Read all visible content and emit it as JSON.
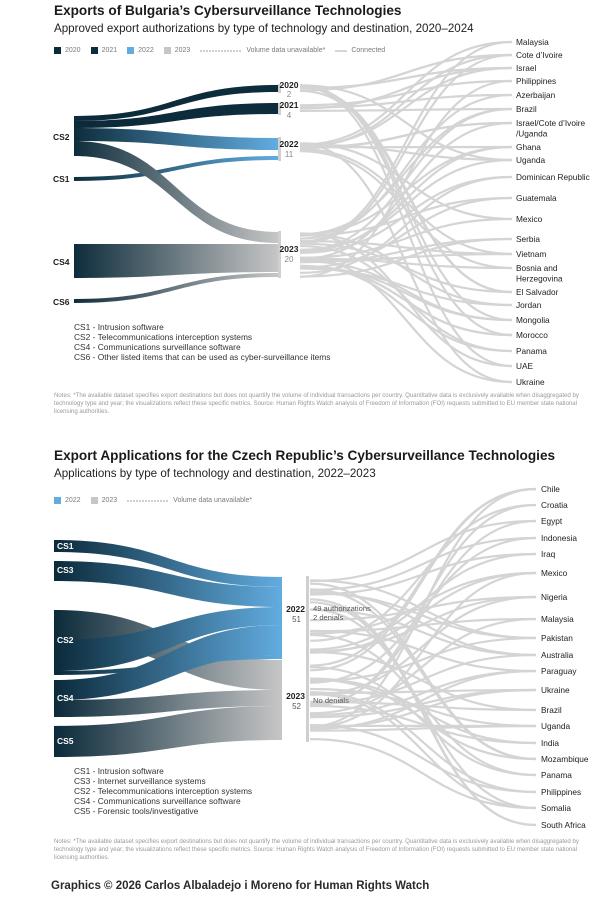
{
  "chart1": {
    "title": "Exports of Bulgaria’s Cybersurveillance Technologies",
    "subtitle": "Approved export authorizations by type of technology and destination, 2020–2024",
    "legend": [
      {
        "label": "2020",
        "color": "#0b2a3a"
      },
      {
        "label": "2021",
        "color": "#0e2d3c"
      },
      {
        "label": "2022",
        "color": "#62ace0"
      },
      {
        "label": "2023",
        "color": "#c6c6c6"
      }
    ],
    "legend_unavailable": "Volume data unavailable*",
    "legend_connected": "Connected",
    "sources": [
      "CS2",
      "CS1",
      "CS4",
      "CS6"
    ],
    "years": [
      {
        "year": "2020",
        "count": "2"
      },
      {
        "year": "2021",
        "count": "4"
      },
      {
        "year": "2022",
        "count": "11"
      },
      {
        "year": "2023",
        "count": "20"
      }
    ],
    "destinations": [
      "Malaysia",
      "Cote d’Ivoire",
      "Israel",
      "Philippines",
      "Azerbaijan",
      "Brazil",
      "Israel/Cote d’Ivoire /Uganda",
      "Ghana",
      "Uganda",
      "Dominican Republic",
      "Guatemala",
      "Mexico",
      "Serbia",
      "Vietnam",
      "Bosnia and Herzegovina",
      "El Salvador",
      "Jordan",
      "Mongolia",
      "Morocco",
      "Panama",
      "UAE",
      "Ukraine"
    ],
    "definitions": [
      "CS1 - Intrusion software",
      "CS2 - Telecommunications interception systems",
      "CS4 - Communications surveillance software",
      "CS6 - Other listed items that can be used as cyber-surveillance items"
    ],
    "notes": "Notes: *The available dataset specifies export destinations but does not quantify the volume of individual transactions per country. Quantitative data is exclusively available when disaggregated by technology type and year; the visualizations reflect these specific metrics. Source: Human Rights Watch analysis of Freedom of Information (FOI) requests submitted to EU member state national licensing authorities."
  },
  "chart2": {
    "title": "Export Applications for the Czech Republic’s Cybersurveillance Technologies",
    "subtitle": "Applications by type of technology and destination, 2022–2023",
    "legend": [
      {
        "label": "2022",
        "color": "#62ace0"
      },
      {
        "label": "2023",
        "color": "#c6c6c6"
      }
    ],
    "legend_unavailable": "Volume data unavailable*",
    "sources": [
      "CS1",
      "CS3",
      "CS2",
      "CS4",
      "CS5"
    ],
    "years": [
      {
        "year": "2022",
        "count": "51",
        "note1": "49 authorizations",
        "note2": "2 denials"
      },
      {
        "year": "2023",
        "count": "52",
        "note1": "No denials",
        "note2": ""
      }
    ],
    "destinations": [
      "Chile",
      "Croatia",
      "Egypt",
      "Indonesia",
      "Iraq",
      "Mexico",
      "Nigeria",
      "Malaysia",
      "Pakistan",
      "Australia",
      "Paraguay",
      "Ukraine",
      "Brazil",
      "Uganda",
      "India",
      "Mozambique",
      "Panama",
      "Philippines",
      "Somalia",
      "South Africa"
    ],
    "definitions": [
      "CS1 - Intrusion software",
      "CS3 - Internet surveillance systems",
      "CS2 - Telecommunications interception systems",
      "CS4 - Communications surveillance software",
      "CS5 - Forensic tools/investigative"
    ],
    "notes": "Notes: *The available dataset specifies export destinations but does not quantify the volume of individual transactions per country. Quantitative data is exclusively available when disaggregated by technology type and year; the visualizations reflect these specific metrics. Source: Human Rights Watch analysis of Freedom of Information (FOI) requests submitted to EU member state national licensing authorities."
  },
  "credit": "Graphics © 2026 Carlos Albaladejo i Moreno for Human Rights Watch"
}
